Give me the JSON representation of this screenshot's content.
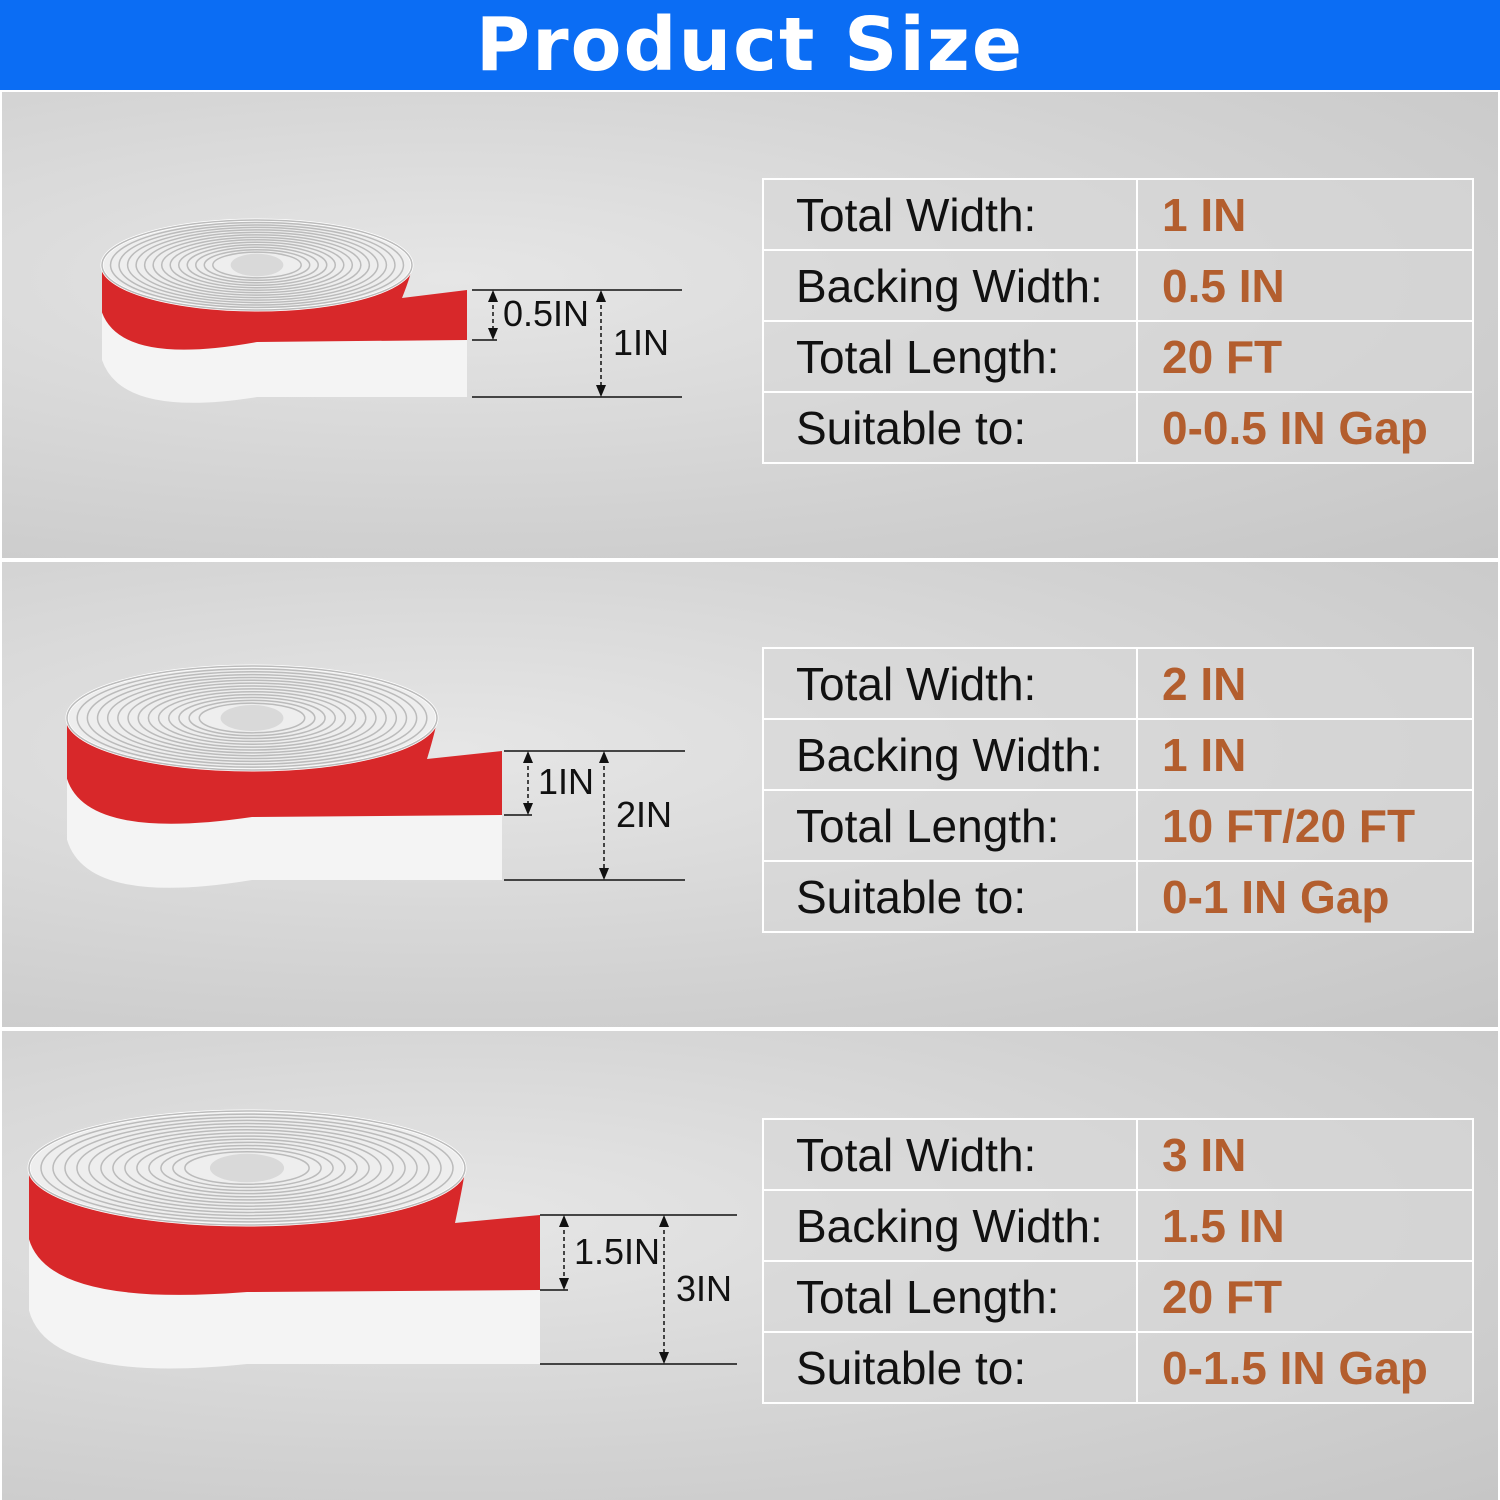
{
  "header": {
    "title": "Product Size",
    "color": "#0b6df4"
  },
  "value_color": "#b35e2e",
  "tape_colors": {
    "backing": "#d8282a",
    "strip": "#f4f4f4"
  },
  "panels": [
    {
      "backing_label": "0.5IN",
      "total_label": "1IN",
      "rows": [
        {
          "key": "Total Width:",
          "value": "1 IN"
        },
        {
          "key": "Backing Width:",
          "value": "0.5 IN"
        },
        {
          "key": "Total Length:",
          "value": "20 FT"
        },
        {
          "key": "Suitable to:",
          "value": "0-0.5 IN Gap"
        }
      ]
    },
    {
      "backing_label": "1IN",
      "total_label": "2IN",
      "rows": [
        {
          "key": "Total Width:",
          "value": "2 IN"
        },
        {
          "key": "Backing Width:",
          "value": "1 IN"
        },
        {
          "key": "Total Length:",
          "value": "10 FT/20 FT"
        },
        {
          "key": "Suitable to:",
          "value": "0-1 IN Gap"
        }
      ]
    },
    {
      "backing_label": "1.5IN",
      "total_label": "3IN",
      "rows": [
        {
          "key": "Total Width:",
          "value": "3 IN"
        },
        {
          "key": "Backing Width:",
          "value": "1.5 IN"
        },
        {
          "key": "Total Length:",
          "value": "20 FT"
        },
        {
          "key": "Suitable to:",
          "value": "0-1.5 IN Gap"
        }
      ]
    }
  ]
}
